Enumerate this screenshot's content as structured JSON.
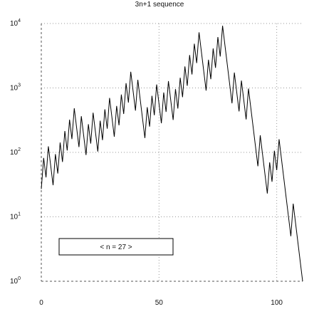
{
  "chart_data": {
    "type": "line",
    "title": "3n+1 sequence",
    "annotation": "< n = 27 >",
    "x_scale": "linear",
    "y_scale": "log",
    "xlim": [
      0,
      111
    ],
    "ylim": [
      1,
      10000
    ],
    "x_ticks": [
      {
        "value": 0,
        "label": "0"
      },
      {
        "value": 50,
        "label": "50"
      },
      {
        "value": 100,
        "label": "100"
      }
    ],
    "y_ticks": [
      {
        "value": 1,
        "base": "10",
        "exp": "0"
      },
      {
        "value": 10,
        "base": "10",
        "exp": "1"
      },
      {
        "value": 100,
        "base": "10",
        "exp": "2"
      },
      {
        "value": 1000,
        "base": "10",
        "exp": "3"
      },
      {
        "value": 10000,
        "base": "10",
        "exp": "4"
      }
    ],
    "grid": true,
    "line_color": "#000000",
    "values": [
      27,
      82,
      41,
      124,
      62,
      31,
      94,
      47,
      142,
      71,
      214,
      107,
      322,
      161,
      484,
      242,
      121,
      364,
      182,
      91,
      274,
      137,
      412,
      206,
      103,
      310,
      155,
      466,
      233,
      700,
      350,
      175,
      526,
      263,
      790,
      395,
      1186,
      593,
      1780,
      890,
      445,
      1336,
      668,
      334,
      167,
      502,
      251,
      754,
      377,
      1132,
      566,
      283,
      850,
      425,
      1276,
      638,
      319,
      958,
      479,
      1438,
      719,
      2158,
      1079,
      3238,
      1619,
      4858,
      2429,
      7288,
      3644,
      1822,
      911,
      2734,
      1367,
      4102,
      2051,
      6154,
      3077,
      9232,
      4616,
      2308,
      1154,
      577,
      1732,
      866,
      433,
      1300,
      650,
      325,
      976,
      488,
      244,
      122,
      61,
      184,
      92,
      46,
      23,
      70,
      35,
      106,
      53,
      160,
      80,
      40,
      20,
      10,
      5,
      16,
      8,
      4,
      2,
      1
    ]
  }
}
